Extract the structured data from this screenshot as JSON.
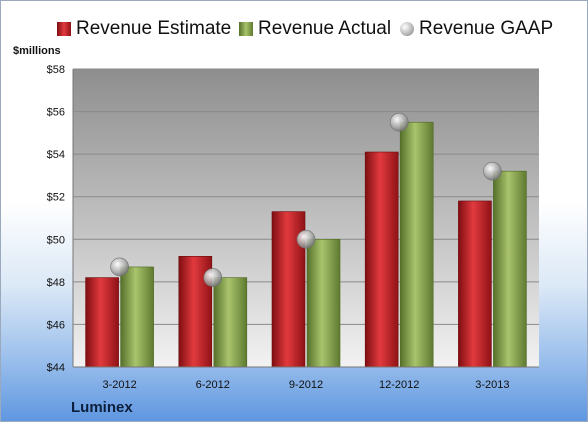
{
  "chart_data": {
    "type": "bar",
    "ylabel": "$millions",
    "ylim": [
      44,
      58
    ],
    "yticks": [
      "$44",
      "$46",
      "$48",
      "$50",
      "$52",
      "$54",
      "$56",
      "$58"
    ],
    "categories": [
      "3-2012",
      "6-2012",
      "9-2012",
      "12-2012",
      "3-2013"
    ],
    "series": [
      {
        "name": "Revenue Estimate",
        "kind": "bar",
        "color": "#cc1f24",
        "values": [
          48.2,
          49.2,
          51.3,
          54.1,
          51.8
        ]
      },
      {
        "name": "Revenue Actual",
        "kind": "bar",
        "color": "#89a84a",
        "values": [
          48.7,
          48.2,
          50.0,
          55.5,
          53.2
        ]
      },
      {
        "name": "Revenue GAAP",
        "kind": "marker",
        "color": "#b0b0b0",
        "values": [
          48.7,
          48.2,
          50.0,
          55.5,
          53.2
        ]
      }
    ],
    "legend": "top",
    "grid": true
  },
  "brand": "Luminex"
}
